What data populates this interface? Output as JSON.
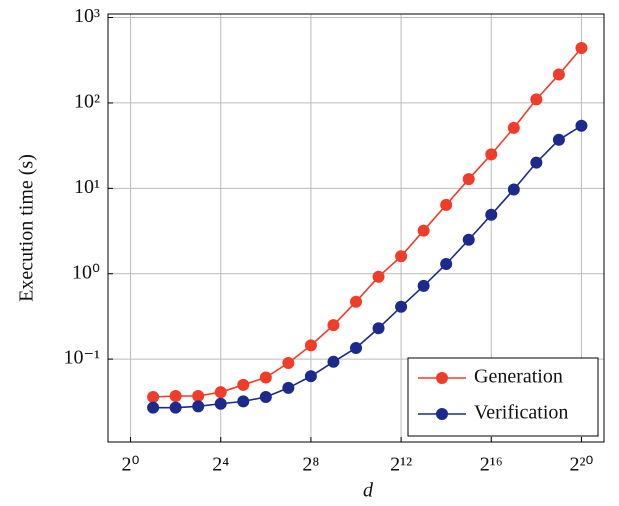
{
  "chart_data": {
    "type": "line",
    "x_label": "d",
    "y_label": "Execution time (s)",
    "x": [
      2,
      4,
      8,
      16,
      32,
      64,
      128,
      256,
      512,
      1024,
      2048,
      4096,
      8192,
      16384,
      32768,
      65536,
      131072,
      262144,
      524288,
      1048576
    ],
    "series": [
      {
        "name": "Generation",
        "color": "#f03c28",
        "values": [
          0.036,
          0.037,
          0.037,
          0.041,
          0.05,
          0.061,
          0.09,
          0.145,
          0.25,
          0.47,
          0.92,
          1.6,
          3.2,
          6.4,
          12.8,
          25,
          51,
          110,
          215,
          440
        ]
      },
      {
        "name": "Verification",
        "color": "#1c2a8c",
        "values": [
          0.027,
          0.027,
          0.028,
          0.03,
          0.032,
          0.036,
          0.046,
          0.063,
          0.093,
          0.135,
          0.23,
          0.41,
          0.72,
          1.3,
          2.5,
          4.9,
          9.7,
          20,
          37,
          54
        ]
      }
    ],
    "x_log_base": 2,
    "y_log_base": 10,
    "xlim": [
      0.5,
      2097152
    ],
    "ylim": [
      0.0107,
      1100
    ],
    "xticks": [
      {
        "value": 1,
        "label": "2⁰"
      },
      {
        "value": 16,
        "label": "2⁴"
      },
      {
        "value": 256,
        "label": "2⁸"
      },
      {
        "value": 4096,
        "label": "2¹²"
      },
      {
        "value": 65536,
        "label": "2¹⁶"
      },
      {
        "value": 1048576,
        "label": "2²⁰"
      }
    ],
    "yticks": [
      {
        "value": 0.1,
        "label": "10⁻¹"
      },
      {
        "value": 1,
        "label": "10⁰"
      },
      {
        "value": 10,
        "label": "10¹"
      },
      {
        "value": 100,
        "label": "10²"
      },
      {
        "value": 1000,
        "label": "10³"
      }
    ],
    "grid": true,
    "legend": "lower right"
  }
}
